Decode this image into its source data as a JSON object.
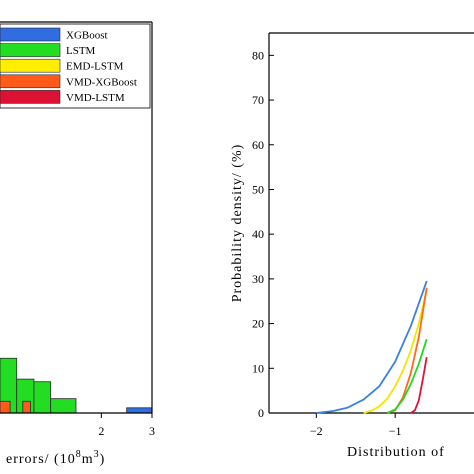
{
  "chart_data": [
    {
      "type": "bar",
      "xlabel": "errors/ (10",
      "xlabel_sup1": "8",
      "xlabel_mid": "m",
      "xlabel_sup2": "3",
      "xlabel_end": ")",
      "xlim": [
        0,
        3
      ],
      "ylim": [
        0,
        30
      ],
      "x_ticks": [
        "2",
        "3"
      ],
      "x_tick_values": [
        2,
        3
      ],
      "legend_position": "top-left",
      "series": [
        {
          "name": "XGBoost",
          "color": "#2f6de0",
          "bins": [
            {
              "x0": 2.5,
              "x1": 3.0,
              "value": 0.4
            }
          ]
        },
        {
          "name": "LSTM",
          "color": "#22dd22",
          "bins": [
            {
              "x0": 0.0,
              "x1": 0.33,
              "value": 4.2
            },
            {
              "x0": 0.33,
              "x1": 0.67,
              "value": 2.6
            },
            {
              "x0": 0.67,
              "x1": 1.0,
              "value": 2.4
            },
            {
              "x0": 1.0,
              "x1": 1.5,
              "value": 1.1
            }
          ]
        },
        {
          "name": "EMD-LSTM",
          "color": "#ffee00",
          "bins": []
        },
        {
          "name": "VMD-XGBoost",
          "color": "#ff5a1a",
          "bins": [
            {
              "x0": 0.0,
              "x1": 0.2,
              "value": 0.9
            },
            {
              "x0": 0.45,
              "x1": 0.6,
              "value": 0.9
            }
          ]
        },
        {
          "name": "VMD-LSTM",
          "color": "#dd1133",
          "bins": []
        }
      ]
    },
    {
      "type": "line",
      "ylabel": "Probability density/ (%)",
      "xlabel": "Distribution of",
      "xlim": [
        -2.6,
        0.0
      ],
      "ylim": [
        0,
        85
      ],
      "y_ticks": [
        0,
        10,
        20,
        30,
        40,
        50,
        60,
        70,
        80
      ],
      "x_ticks": [
        "−2",
        "−1"
      ],
      "x_tick_values": [
        -2,
        -1
      ],
      "series": [
        {
          "name": "XGBoost",
          "color": "#3b7fe0",
          "x": [
            -2.0,
            -1.8,
            -1.6,
            -1.4,
            -1.2,
            -1.0,
            -0.8,
            -0.6
          ],
          "y": [
            0.0,
            0.4,
            1.2,
            3.0,
            6.0,
            11.5,
            19.5,
            29.5
          ]
        },
        {
          "name": "EMD-LSTM",
          "color": "#f2e600",
          "x": [
            -1.4,
            -1.3,
            -1.2,
            -1.1,
            -1.0,
            -0.9,
            -0.8,
            -0.7,
            -0.6
          ],
          "y": [
            0.0,
            0.5,
            1.5,
            3.2,
            6.0,
            9.5,
            14.0,
            20.0,
            27.5
          ]
        },
        {
          "name": "VMD-XGBoost",
          "color": "#ff6a1a",
          "x": [
            -1.1,
            -1.0,
            -0.9,
            -0.8,
            -0.7,
            -0.6
          ],
          "y": [
            0.0,
            0.6,
            3.5,
            9.0,
            17.0,
            28.0
          ]
        },
        {
          "name": "LSTM",
          "color": "#22d622",
          "x": [
            -1.1,
            -1.0,
            -0.9,
            -0.8,
            -0.7,
            -0.6
          ],
          "y": [
            0.0,
            0.8,
            3.0,
            6.5,
            11.0,
            16.5
          ]
        },
        {
          "name": "VMD-LSTM",
          "color": "#e0103a",
          "x": [
            -0.8,
            -0.75,
            -0.7,
            -0.65,
            -0.6
          ],
          "y": [
            0.0,
            0.6,
            2.8,
            7.5,
            12.5
          ]
        }
      ]
    }
  ]
}
